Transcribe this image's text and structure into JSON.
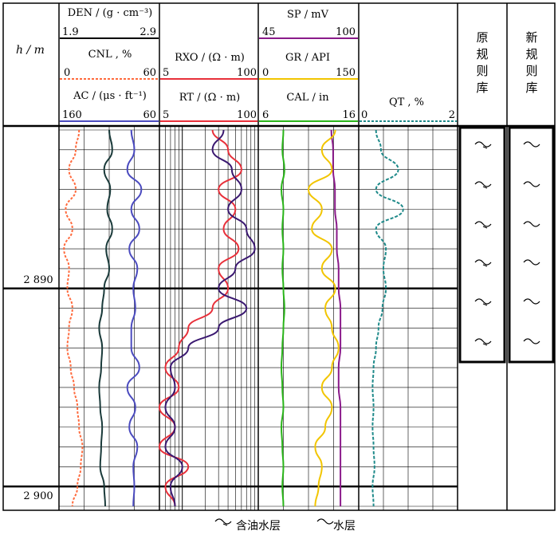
{
  "depth_axis": {
    "label": "h / m",
    "ticks": [
      "2 890",
      "2 900"
    ]
  },
  "tracks": {
    "porosity": {
      "curves": [
        {
          "name": "DEN / (g · cm⁻³)",
          "min": "1.9",
          "max": "2.9",
          "color": "#000000"
        },
        {
          "name": "CNL , %",
          "min": "0",
          "max": "60",
          "color": "#ff6a3d"
        },
        {
          "name": "AC / (μs · ft⁻¹)",
          "min": "160",
          "max": "60",
          "color": "#4b4bbf"
        }
      ]
    },
    "resistivity": {
      "curves": [
        {
          "name": "RXO / (Ω · m)",
          "min": "5",
          "max": "100",
          "color": "#e8303a"
        },
        {
          "name": "RT / (Ω · m)",
          "min": "5",
          "max": "100",
          "color": "#e8303a"
        }
      ]
    },
    "lithology": {
      "curves": [
        {
          "name": "SP / mV",
          "min": "45",
          "max": "100",
          "color": "#8a1a8a"
        },
        {
          "name": "GR / API",
          "min": "0",
          "max": "150",
          "color": "#f2c500"
        },
        {
          "name": "CAL / in",
          "min": "6",
          "max": "16",
          "color": "#2ab51a"
        }
      ]
    },
    "qt": {
      "curves": [
        {
          "name": "QT , %",
          "min": "0",
          "max": "2",
          "color": "#1f8a8a"
        }
      ]
    }
  },
  "rule_columns": {
    "old_label": "原规则库",
    "new_label": "新规则库"
  },
  "legend": {
    "oil_water_label": "含油水层",
    "water_label": "水层",
    "oil_water_icon": "oil-water-symbol",
    "water_icon": "water-symbol"
  },
  "chart_data": {
    "type": "line",
    "x_label": "h / m",
    "x_range": [
      2882,
      2901
    ],
    "series": [
      {
        "name": "CNL",
        "unit": "%",
        "range": [
          0,
          60
        ],
        "color": "#ff6a3d",
        "points": [
          [
            2882,
            12
          ],
          [
            2883,
            10
          ],
          [
            2884,
            6
          ],
          [
            2885,
            10
          ],
          [
            2886,
            4
          ],
          [
            2887,
            8
          ],
          [
            2888,
            3
          ],
          [
            2889,
            6
          ],
          [
            2890,
            5
          ],
          [
            2891,
            8
          ],
          [
            2892,
            6
          ],
          [
            2893,
            5
          ],
          [
            2894,
            7
          ],
          [
            2895,
            9
          ],
          [
            2896,
            11
          ],
          [
            2897,
            12
          ],
          [
            2898,
            14
          ],
          [
            2899,
            13
          ],
          [
            2900,
            11
          ],
          [
            2901,
            8
          ]
        ]
      },
      {
        "name": "DEN",
        "unit": "g · cm⁻³",
        "range": [
          1.9,
          2.9
        ],
        "color": "#1a3a3a",
        "points": [
          [
            2882,
            2.4
          ],
          [
            2883,
            2.43
          ],
          [
            2884,
            2.35
          ],
          [
            2885,
            2.41
          ],
          [
            2886,
            2.38
          ],
          [
            2887,
            2.43
          ],
          [
            2888,
            2.37
          ],
          [
            2889,
            2.4
          ],
          [
            2890,
            2.35
          ],
          [
            2891,
            2.33
          ],
          [
            2892,
            2.3
          ],
          [
            2893,
            2.33
          ],
          [
            2894,
            2.32
          ],
          [
            2895,
            2.3
          ],
          [
            2896,
            2.31
          ],
          [
            2897,
            2.33
          ],
          [
            2898,
            2.32
          ],
          [
            2899,
            2.31
          ],
          [
            2900,
            2.35
          ],
          [
            2901,
            2.36
          ]
        ]
      },
      {
        "name": "AC",
        "unit": "μs · ft⁻¹",
        "range": [
          160,
          60
        ],
        "color": "#4b4bbf",
        "points": [
          [
            2882,
            88
          ],
          [
            2883,
            85
          ],
          [
            2884,
            92
          ],
          [
            2885,
            78
          ],
          [
            2886,
            88
          ],
          [
            2887,
            80
          ],
          [
            2888,
            90
          ],
          [
            2889,
            82
          ],
          [
            2890,
            86
          ],
          [
            2891,
            84
          ],
          [
            2892,
            88
          ],
          [
            2893,
            88
          ],
          [
            2894,
            80
          ],
          [
            2895,
            92
          ],
          [
            2896,
            84
          ],
          [
            2897,
            90
          ],
          [
            2898,
            82
          ],
          [
            2899,
            86
          ],
          [
            2900,
            85
          ],
          [
            2901,
            86
          ]
        ]
      },
      {
        "name": "RXO",
        "unit": "Ω · m",
        "range": [
          5,
          100
        ],
        "color": "#e8303a",
        "points": [
          [
            2882,
            25
          ],
          [
            2883,
            40
          ],
          [
            2884,
            60
          ],
          [
            2885,
            30
          ],
          [
            2886,
            50
          ],
          [
            2887,
            35
          ],
          [
            2888,
            55
          ],
          [
            2889,
            30
          ],
          [
            2890,
            40
          ],
          [
            2891,
            25
          ],
          [
            2892,
            12
          ],
          [
            2893,
            9
          ],
          [
            2894,
            6
          ],
          [
            2895,
            9
          ],
          [
            2896,
            5
          ],
          [
            2897,
            8
          ],
          [
            2898,
            5
          ],
          [
            2899,
            12
          ],
          [
            2900,
            6
          ],
          [
            2901,
            8
          ]
        ]
      },
      {
        "name": "RT",
        "unit": "Ω · m",
        "range": [
          5,
          100
        ],
        "color": "#3a1870",
        "points": [
          [
            2882,
            35
          ],
          [
            2883,
            25
          ],
          [
            2884,
            45
          ],
          [
            2885,
            60
          ],
          [
            2886,
            40
          ],
          [
            2887,
            70
          ],
          [
            2888,
            90
          ],
          [
            2889,
            50
          ],
          [
            2890,
            30
          ],
          [
            2891,
            70
          ],
          [
            2892,
            30
          ],
          [
            2893,
            12
          ],
          [
            2894,
            7
          ],
          [
            2895,
            8
          ],
          [
            2896,
            6
          ],
          [
            2897,
            8
          ],
          [
            2898,
            6
          ],
          [
            2899,
            10
          ],
          [
            2900,
            7
          ],
          [
            2901,
            8
          ]
        ]
      },
      {
        "name": "SP",
        "unit": "mV",
        "range": [
          45,
          100
        ],
        "color": "#8a1a8a",
        "points": [
          [
            2882,
            85
          ],
          [
            2883,
            86
          ],
          [
            2884,
            86
          ],
          [
            2885,
            87
          ],
          [
            2886,
            87
          ],
          [
            2887,
            88
          ],
          [
            2888,
            88
          ],
          [
            2889,
            89
          ],
          [
            2890,
            89
          ],
          [
            2891,
            90
          ],
          [
            2892,
            90
          ],
          [
            2893,
            90
          ],
          [
            2894,
            89
          ],
          [
            2895,
            89
          ],
          [
            2896,
            90
          ],
          [
            2897,
            90
          ],
          [
            2898,
            90
          ],
          [
            2899,
            90
          ],
          [
            2900,
            90
          ],
          [
            2901,
            90
          ]
        ]
      },
      {
        "name": "GR",
        "unit": "API",
        "range": [
          0,
          150
        ],
        "color": "#f2c500",
        "points": [
          [
            2882,
            115
          ],
          [
            2883,
            95
          ],
          [
            2884,
            110
          ],
          [
            2885,
            75
          ],
          [
            2886,
            95
          ],
          [
            2887,
            80
          ],
          [
            2888,
            110
          ],
          [
            2889,
            95
          ],
          [
            2890,
            115
          ],
          [
            2891,
            100
          ],
          [
            2892,
            110
          ],
          [
            2893,
            120
          ],
          [
            2894,
            110
          ],
          [
            2895,
            95
          ],
          [
            2896,
            110
          ],
          [
            2897,
            100
          ],
          [
            2898,
            85
          ],
          [
            2899,
            95
          ],
          [
            2900,
            90
          ],
          [
            2901,
            85
          ]
        ]
      },
      {
        "name": "CAL",
        "unit": "in",
        "range": [
          6,
          16
        ],
        "color": "#2ab51a",
        "points": [
          [
            2882,
            8.5
          ],
          [
            2883,
            8.4
          ],
          [
            2884,
            8.6
          ],
          [
            2885,
            8.3
          ],
          [
            2886,
            8.5
          ],
          [
            2887,
            8.4
          ],
          [
            2888,
            8.5
          ],
          [
            2889,
            8.4
          ],
          [
            2890,
            8.5
          ],
          [
            2891,
            8.6
          ],
          [
            2892,
            8.5
          ],
          [
            2893,
            8.4
          ],
          [
            2894,
            8.3
          ],
          [
            2895,
            8.4
          ],
          [
            2896,
            8.5
          ],
          [
            2897,
            8.3
          ],
          [
            2898,
            8.4
          ],
          [
            2899,
            8.5
          ],
          [
            2900,
            8.4
          ],
          [
            2901,
            8.5
          ]
        ]
      },
      {
        "name": "QT",
        "unit": "%",
        "range": [
          0,
          2
        ],
        "color": "#1f8a8a",
        "points": [
          [
            2882,
            0.35
          ],
          [
            2883,
            0.45
          ],
          [
            2884,
            0.8
          ],
          [
            2885,
            0.35
          ],
          [
            2886,
            0.9
          ],
          [
            2887,
            0.35
          ],
          [
            2888,
            0.55
          ],
          [
            2889,
            0.5
          ],
          [
            2890,
            0.55
          ],
          [
            2891,
            0.48
          ],
          [
            2892,
            0.4
          ],
          [
            2893,
            0.35
          ],
          [
            2894,
            0.3
          ],
          [
            2895,
            0.28
          ],
          [
            2896,
            0.3
          ],
          [
            2897,
            0.28
          ],
          [
            2898,
            0.3
          ],
          [
            2899,
            0.32
          ],
          [
            2900,
            0.28
          ],
          [
            2901,
            0.3
          ]
        ]
      }
    ],
    "ylim": [
      2882,
      2901
    ]
  }
}
